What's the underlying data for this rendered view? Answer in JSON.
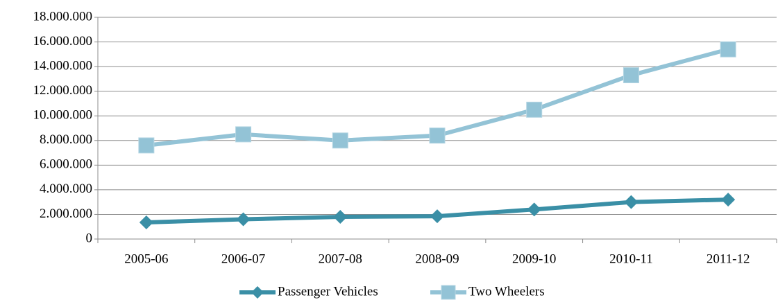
{
  "chart_data": {
    "type": "line",
    "categories": [
      "2005-06",
      "2006-07",
      "2007-08",
      "2008-09",
      "2009-10",
      "2010-11",
      "2011-12"
    ],
    "series": [
      {
        "name": "Passenger Vehicles",
        "color": "#3a8fa6",
        "marker": "diamond",
        "values": [
          1350000,
          1600000,
          1800000,
          1850000,
          2400000,
          3000000,
          3200000
        ]
      },
      {
        "name": "Two Wheelers",
        "color": "#93c3d6",
        "marker": "square",
        "values": [
          7600000,
          8500000,
          8000000,
          8400000,
          10500000,
          13300000,
          15400000
        ]
      }
    ],
    "ylim": [
      0,
      18000000
    ],
    "yticks": [
      0,
      {
        "value": 2000000,
        "label": "2.000.000"
      },
      {
        "value": 4000000,
        "label": "4.000.000"
      },
      {
        "value": 6000000,
        "label": "6.000.000"
      },
      {
        "value": 8000000,
        "label": "8.000.000"
      },
      {
        "value": 10000000,
        "label": "10.000.000"
      },
      {
        "value": 12000000,
        "label": "12.000.000"
      },
      {
        "value": 14000000,
        "label": "14.000.000"
      },
      {
        "value": 16000000,
        "label": "16.000.000"
      },
      {
        "value": 18000000,
        "label": "18.000.000"
      }
    ],
    "grid": true,
    "legend": "bottom"
  }
}
